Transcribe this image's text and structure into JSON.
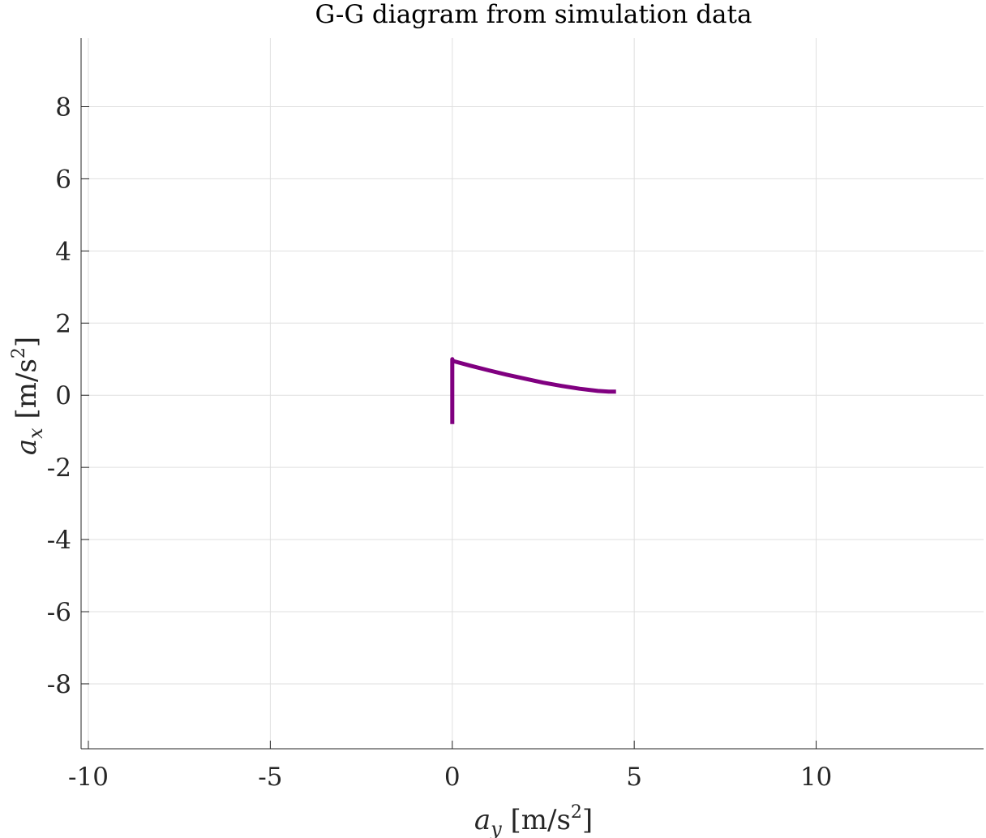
{
  "chart_data": {
    "type": "line",
    "title": "G-G diagram from simulation data",
    "xlabel": {
      "symbol": "a",
      "subscript": "y",
      "unit_open": " [m/s",
      "unit_power": "2",
      "unit_close": "]"
    },
    "ylabel": {
      "symbol": "a",
      "subscript": "x",
      "unit_open": " [m/s",
      "unit_power": "2",
      "unit_close": "]"
    },
    "xlim": [
      -10.2,
      14.6
    ],
    "ylim": [
      -9.8,
      9.9
    ],
    "xticks": [
      -10,
      -5,
      0,
      5,
      10
    ],
    "xtick_labels": [
      "-10",
      "-5",
      "0",
      "5",
      "10"
    ],
    "yticks": [
      -8,
      -6,
      -4,
      -2,
      0,
      2,
      4,
      6,
      8
    ],
    "ytick_labels": [
      "-8",
      "-6",
      "-4",
      "-2",
      "0",
      "2",
      "4",
      "6",
      "8"
    ],
    "grid": true,
    "series": [
      {
        "color": "#800080",
        "x": [
          0,
          0,
          0,
          0.02,
          0.5,
          1.0,
          1.5,
          2.0,
          2.5,
          3.0,
          3.5,
          4.0,
          4.3,
          4.5
        ],
        "y": [
          -0.8,
          0.5,
          1.0,
          0.95,
          0.82,
          0.69,
          0.57,
          0.46,
          0.35,
          0.26,
          0.18,
          0.12,
          0.1,
          0.1
        ]
      }
    ]
  }
}
